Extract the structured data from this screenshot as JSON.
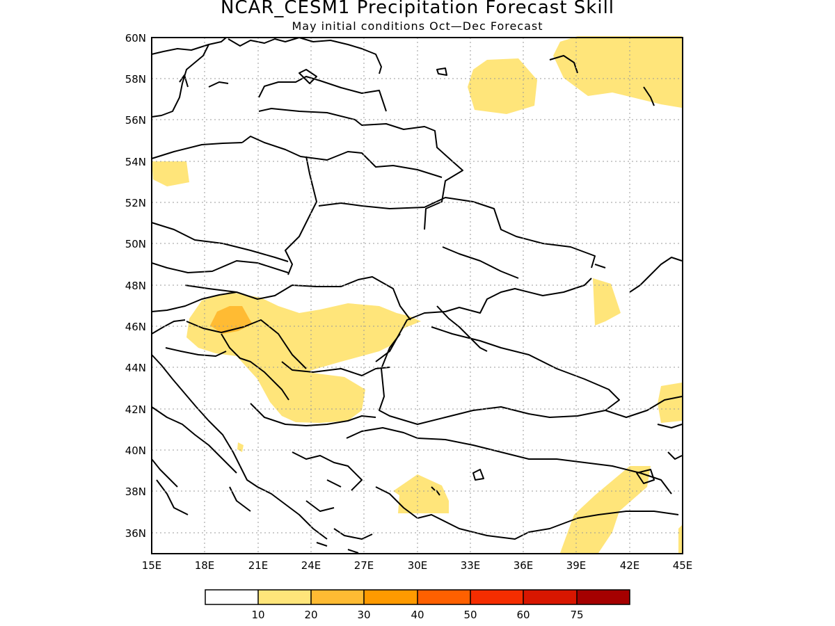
{
  "header": {
    "title": "NCAR_CESM1 Precipitation Forecast Skill",
    "subtitle": "May initial conditions  Oct—Dec Forecast"
  },
  "map": {
    "lon_range": [
      15,
      45
    ],
    "lat_range": [
      35,
      60
    ],
    "grid": true,
    "lat_labels": [
      "60N",
      "58N",
      "56N",
      "54N",
      "52N",
      "50N",
      "48N",
      "46N",
      "44N",
      "42N",
      "40N",
      "38N",
      "36N"
    ],
    "lon_labels": [
      "15E",
      "18E",
      "21E",
      "24E",
      "27E",
      "30E",
      "33E",
      "36E",
      "39E",
      "42E",
      "45E"
    ],
    "colors": {
      "skill_10_20": "#ffe57a",
      "skill_20_30": "#ffbb33"
    }
  },
  "legend": {
    "colors": [
      "#ffffff",
      "#ffe57a",
      "#ffbb33",
      "#ff9a00",
      "#ff6000",
      "#f52d00",
      "#d81600",
      "#a50000"
    ],
    "labels": [
      "10",
      "20",
      "30",
      "40",
      "50",
      "60",
      "75"
    ]
  }
}
